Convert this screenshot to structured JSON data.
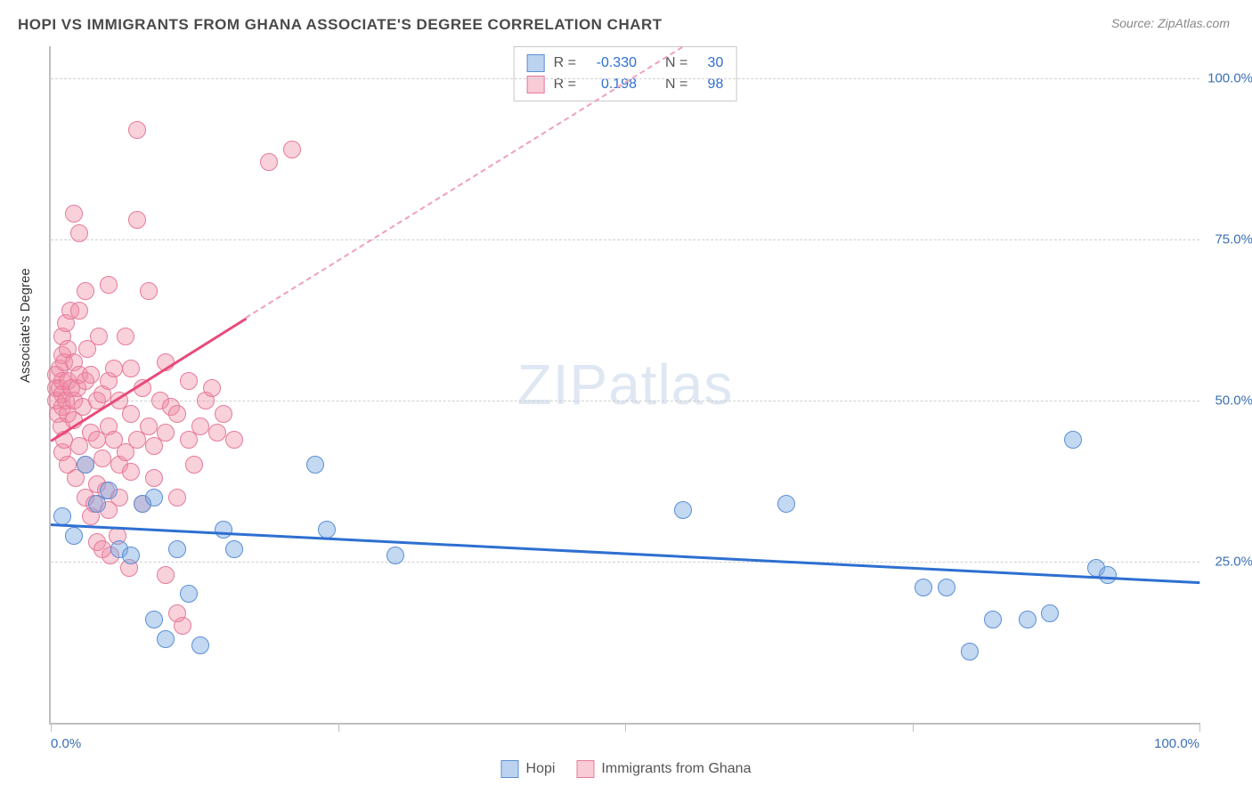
{
  "title": "HOPI VS IMMIGRANTS FROM GHANA ASSOCIATE'S DEGREE CORRELATION CHART",
  "source": "Source: ZipAtlas.com",
  "ylabel": "Associate's Degree",
  "watermark_zip": "ZIP",
  "watermark_atlas": "atlas",
  "chart": {
    "type": "scatter",
    "xlim": [
      0,
      100
    ],
    "ylim": [
      0,
      105
    ],
    "y_gridlines": [
      25,
      50,
      75,
      100
    ],
    "y_tick_labels": [
      "25.0%",
      "50.0%",
      "75.0%",
      "100.0%"
    ],
    "x_ticks": [
      0,
      25,
      50,
      75,
      100
    ],
    "x_tick_labels_shown": {
      "0": "0.0%",
      "100": "100.0%"
    },
    "background_color": "#ffffff",
    "grid_color": "#d0d0d0",
    "axis_color": "#bfbfbf"
  },
  "series": {
    "hopi": {
      "label": "Hopi",
      "color_fill": "rgba(122,168,224,0.45)",
      "color_stroke": "#5a8fd6",
      "marker_size": 18,
      "R": "-0.330",
      "N": "30",
      "trend": {
        "x1": 0,
        "y1": 31,
        "x2": 100,
        "y2": 22,
        "color": "#2e6fd1",
        "width": 2.5
      },
      "points": [
        [
          1,
          32
        ],
        [
          2,
          29
        ],
        [
          3,
          40
        ],
        [
          4,
          34
        ],
        [
          5,
          36
        ],
        [
          6,
          27
        ],
        [
          7,
          26
        ],
        [
          8,
          34
        ],
        [
          9,
          16
        ],
        [
          9,
          35
        ],
        [
          10,
          13
        ],
        [
          11,
          27
        ],
        [
          12,
          20
        ],
        [
          13,
          12
        ],
        [
          15,
          30
        ],
        [
          16,
          27
        ],
        [
          23,
          40
        ],
        [
          24,
          30
        ],
        [
          30,
          26
        ],
        [
          55,
          33
        ],
        [
          64,
          34
        ],
        [
          76,
          21
        ],
        [
          78,
          21
        ],
        [
          80,
          11
        ],
        [
          82,
          16
        ],
        [
          85,
          16
        ],
        [
          87,
          17
        ],
        [
          89,
          44
        ],
        [
          91,
          24
        ],
        [
          92,
          23
        ]
      ]
    },
    "ghana": {
      "label": "Immigrants from Ghana",
      "color_fill": "rgba(240,140,165,0.4)",
      "color_stroke": "#e57a9a",
      "marker_size": 18,
      "R": "0.198",
      "N": "98",
      "trend_solid": {
        "x1": 0,
        "y1": 44,
        "x2": 17,
        "y2": 63,
        "color": "#e84a7a",
        "width": 2.5
      },
      "trend_dash": {
        "x1": 17,
        "y1": 63,
        "x2": 55,
        "y2": 105,
        "color": "#f0a0b8",
        "width": 2
      },
      "points": [
        [
          0.5,
          52
        ],
        [
          0.5,
          54
        ],
        [
          0.5,
          50
        ],
        [
          0.6,
          48
        ],
        [
          0.8,
          55
        ],
        [
          0.8,
          52
        ],
        [
          0.9,
          46
        ],
        [
          1,
          53
        ],
        [
          1,
          51
        ],
        [
          1,
          49
        ],
        [
          1,
          57
        ],
        [
          1,
          60
        ],
        [
          1,
          42
        ],
        [
          1.2,
          44
        ],
        [
          1.2,
          56
        ],
        [
          1.3,
          50
        ],
        [
          1.3,
          62
        ],
        [
          1.5,
          53
        ],
        [
          1.5,
          48
        ],
        [
          1.5,
          40
        ],
        [
          1.5,
          58
        ],
        [
          1.7,
          64
        ],
        [
          1.8,
          52
        ],
        [
          2,
          56
        ],
        [
          2,
          47
        ],
        [
          2,
          50
        ],
        [
          2,
          79
        ],
        [
          2.2,
          38
        ],
        [
          2.3,
          52
        ],
        [
          2.5,
          54
        ],
        [
          2.5,
          43
        ],
        [
          2.5,
          64
        ],
        [
          2.5,
          76
        ],
        [
          2.8,
          49
        ],
        [
          3,
          35
        ],
        [
          3,
          40
        ],
        [
          3,
          53
        ],
        [
          3,
          67
        ],
        [
          3.2,
          58
        ],
        [
          3.5,
          54
        ],
        [
          3.5,
          45
        ],
        [
          3.5,
          32
        ],
        [
          3.8,
          34
        ],
        [
          4,
          37
        ],
        [
          4,
          50
        ],
        [
          4,
          44
        ],
        [
          4,
          28
        ],
        [
          4.2,
          60
        ],
        [
          4.5,
          41
        ],
        [
          4.5,
          51
        ],
        [
          4.8,
          36
        ],
        [
          5,
          46
        ],
        [
          5,
          53
        ],
        [
          5,
          68
        ],
        [
          5,
          33
        ],
        [
          5.2,
          26
        ],
        [
          5.5,
          44
        ],
        [
          5.5,
          55
        ],
        [
          5.8,
          29
        ],
        [
          6,
          40
        ],
        [
          6,
          50
        ],
        [
          6,
          35
        ],
        [
          6.5,
          42
        ],
        [
          6.5,
          60
        ],
        [
          6.8,
          24
        ],
        [
          7,
          48
        ],
        [
          7,
          39
        ],
        [
          7,
          55
        ],
        [
          7.5,
          92
        ],
        [
          7.5,
          78
        ],
        [
          7.5,
          44
        ],
        [
          8,
          34
        ],
        [
          8,
          52
        ],
        [
          8.5,
          46
        ],
        [
          8.5,
          67
        ],
        [
          9,
          43
        ],
        [
          9,
          38
        ],
        [
          9.5,
          50
        ],
        [
          10,
          23
        ],
        [
          10,
          45
        ],
        [
          10,
          56
        ],
        [
          10.5,
          49
        ],
        [
          11,
          48
        ],
        [
          11,
          35
        ],
        [
          11.5,
          15
        ],
        [
          12,
          44
        ],
        [
          12,
          53
        ],
        [
          12.5,
          40
        ],
        [
          13,
          46
        ],
        [
          13.5,
          50
        ],
        [
          14,
          52
        ],
        [
          14.5,
          45
        ],
        [
          15,
          48
        ],
        [
          16,
          44
        ],
        [
          19,
          87
        ],
        [
          21,
          89
        ],
        [
          11,
          17
        ],
        [
          4.5,
          27
        ]
      ]
    }
  },
  "stats_box": {
    "rows": [
      {
        "swatch": "blue",
        "R_label": "R =",
        "R_val": "-0.330",
        "N_label": "N =",
        "N_val": "30"
      },
      {
        "swatch": "pink",
        "R_label": "R =",
        "R_val": "0.198",
        "N_label": "N =",
        "N_val": "98"
      }
    ]
  },
  "legend": {
    "items": [
      {
        "swatch": "blue",
        "label": "Hopi"
      },
      {
        "swatch": "pink",
        "label": "Immigrants from Ghana"
      }
    ]
  }
}
